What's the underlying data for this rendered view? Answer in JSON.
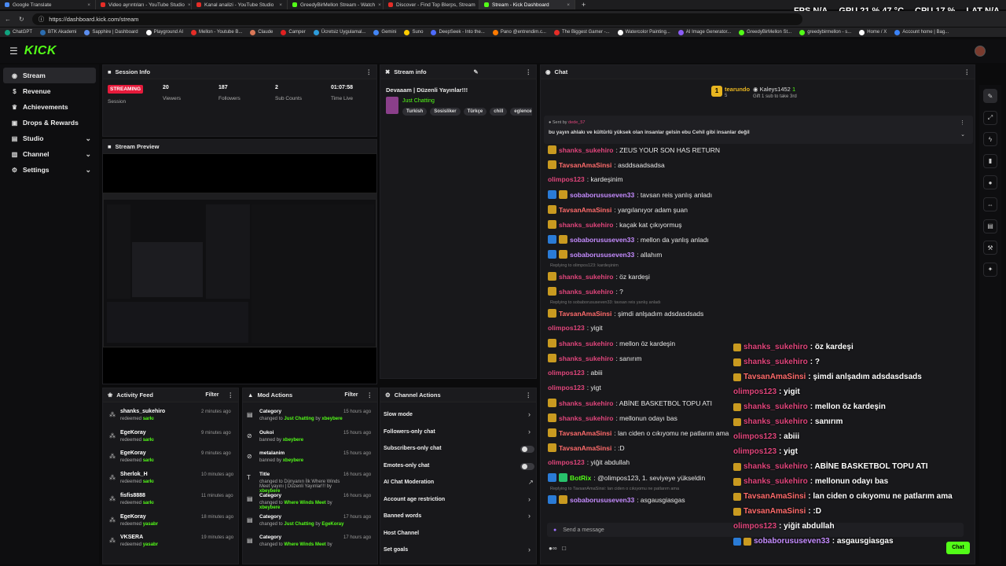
{
  "browser": {
    "tabs": [
      {
        "title": "Google Translate",
        "color": "#4a8af4"
      },
      {
        "title": "Video ayrıntıları - YouTube Studio",
        "color": "#e52d27"
      },
      {
        "title": "Kanal analizi - YouTube Studio",
        "color": "#e52d27"
      },
      {
        "title": "GreedyBirMellon Stream - Watch",
        "color": "#53fc18"
      },
      {
        "title": "Discover - Find Top Blerps, Stream",
        "color": "#e52d27"
      },
      {
        "title": "Stream - Kick Dashboard",
        "color": "#53fc18"
      }
    ],
    "url": "https://dashboard.kick.com/stream",
    "bookmarks": [
      "ChatGPT",
      "BTK Akademi",
      "Sapphire | Dashboard",
      "Playground AI",
      "Mellon - Youtube B...",
      "Claude",
      "Camper",
      "Ücretsiz Uygulamal...",
      "Gemini",
      "Suno",
      "DeepSeek - Into the...",
      "Pano @entrendim.c...",
      "The Biggest Gamer -...",
      "Watercolor Painting...",
      "AI Image Generator...",
      "GreedyBirMellon St...",
      "greedybirmellon - s...",
      "Home / X",
      "Account home | Bag..."
    ]
  },
  "hud": {
    "fps_label": "FPS",
    "fps": "N/A",
    "gpu_label": "GPU",
    "gpu": "21 % 47 °C",
    "cpu_label": "CPU",
    "cpu": "17 %",
    "lat_label": "LAT",
    "lat": "N/A"
  },
  "app": {
    "logo": "KICK"
  },
  "sidebar": {
    "items": [
      {
        "label": "Stream",
        "icon": "broadcast-icon"
      },
      {
        "label": "Revenue",
        "icon": "revenue-icon"
      },
      {
        "label": "Achievements",
        "icon": "trophy-icon"
      },
      {
        "label": "Drops & Rewards",
        "icon": "gift-icon"
      },
      {
        "label": "Studio",
        "icon": "studio-icon"
      },
      {
        "label": "Channel",
        "icon": "channel-icon"
      },
      {
        "label": "Settings",
        "icon": "gear-icon"
      }
    ]
  },
  "session": {
    "title": "Session Info",
    "status": "STREAMING",
    "session_label": "Session",
    "viewers": "20",
    "viewers_label": "Viewers",
    "followers": "187",
    "followers_label": "Followers",
    "subs": "2",
    "subs_label": "Sub Counts",
    "time": "01:07:58",
    "time_label": "Time Live"
  },
  "stream_info": {
    "title": "Stream info",
    "stream_title": "Devaaam | Düzenli Yayınlar!!!",
    "category": "Just Chatting",
    "tags": [
      "Turkish",
      "Sosisliker",
      "Türkçe",
      "chill",
      "eglence"
    ]
  },
  "preview": {
    "title": "Stream Preview"
  },
  "activity": {
    "title": "Activity Feed",
    "filter": "Filter",
    "items": [
      {
        "name": "shanks_sukehiro",
        "action": "redeemed",
        "reward": "sarkı",
        "time": "2 minutes ago"
      },
      {
        "name": "EgeKoray",
        "action": "redeemed",
        "reward": "sarkı",
        "time": "9 minutes ago"
      },
      {
        "name": "EgeKoray",
        "action": "redeemed",
        "reward": "sarkı",
        "time": "9 minutes ago"
      },
      {
        "name": "Sherlok_H",
        "action": "redeemed",
        "reward": "sarkı",
        "time": "10 minutes ago"
      },
      {
        "name": "fisfis8888",
        "action": "redeemed",
        "reward": "sarkı",
        "time": "11 minutes ago"
      },
      {
        "name": "EgeKoray",
        "action": "redeemed",
        "reward": "yasabr",
        "time": "18 minutes ago"
      },
      {
        "name": "VKSERA",
        "action": "redeemed",
        "reward": "yasabr",
        "time": "19 minutes ago"
      }
    ]
  },
  "mod_actions": {
    "title": "Mod Actions",
    "filter": "Filter",
    "items": [
      {
        "title": "Category",
        "detail_pre": "changed to",
        "detail_hl": "Just Chatting",
        "detail_post": "by",
        "by": "xbeybere",
        "time": "15 hours ago"
      },
      {
        "title": "Oukoi",
        "detail_pre": "banned by",
        "detail_hl": "",
        "detail_post": "",
        "by": "xbeybere",
        "time": "15 hours ago"
      },
      {
        "title": "metalanim",
        "detail_pre": "banned by",
        "detail_hl": "",
        "detail_post": "",
        "by": "xbeybere",
        "time": "15 hours ago"
      },
      {
        "title": "Title",
        "detail_pre": "changed to Dünyanın İlk Where Winds Meet yayını | Düzenli Yayınlar!!! by",
        "detail_hl": "",
        "detail_post": "",
        "by": "xbeybere",
        "time": "16 hours ago"
      },
      {
        "title": "Category",
        "detail_pre": "changed to",
        "detail_hl": "Where Winds Meet",
        "detail_post": "by",
        "by": "xbeybere",
        "time": "16 hours ago"
      },
      {
        "title": "Category",
        "detail_pre": "changed to",
        "detail_hl": "Just Chatting",
        "detail_post": "by",
        "by": "EgeKoray",
        "time": "17 hours ago"
      },
      {
        "title": "Category",
        "detail_pre": "changed to",
        "detail_hl": "Where Winds Meet",
        "detail_post": "by",
        "by": "",
        "time": "17 hours ago"
      }
    ]
  },
  "channel_actions": {
    "title": "Channel Actions",
    "items": [
      {
        "label": "Slow mode",
        "type": "chevron"
      },
      {
        "label": "Followers-only chat",
        "type": "chevron"
      },
      {
        "label": "Subscribers-only chat",
        "type": "toggle"
      },
      {
        "label": "Emotes-only chat",
        "type": "toggle"
      },
      {
        "label": "AI Chat Moderation",
        "type": "external"
      },
      {
        "label": "Account age restriction",
        "type": "chevron"
      },
      {
        "label": "Banned words",
        "type": "chevron"
      },
      {
        "label": "Host Channel",
        "type": "none"
      },
      {
        "label": "Set goals",
        "type": "chevron"
      }
    ]
  },
  "chat": {
    "title": "Chat",
    "top_gifter_1": "tearundo",
    "top_gifter_1_count": "5",
    "top_gifter_2": "Kaleys1452",
    "top_gifter_2_count": "1",
    "gift_note": "Gift 1 sub to take 3rd",
    "pinned_by_label": "Sent by",
    "pinned_by": "dede_57",
    "pinned_text": "bu yayın ahlakı ve kültürlü yüksek olan insanlar gelsin ebu Cehil gibi insanlar değil",
    "input_placeholder": "Send a message",
    "send_label": "Chat",
    "messages": [
      {
        "user": "shanks_sukehiro",
        "color": "#e0457b",
        "badges": [
          "crown"
        ],
        "text": ": ZEUS YOUR SON HAS RETURN",
        "reply": ""
      },
      {
        "user": "TavsanAmaSinsi",
        "color": "#ff6b6b",
        "badges": [
          "crown"
        ],
        "text": ": asddsaadsadsa",
        "reply": ""
      },
      {
        "user": "olimpos123",
        "color": "#e0457b",
        "badges": [],
        "text": ": kardeşinim",
        "reply": ""
      },
      {
        "user": "sobaborususeven33",
        "color": "#c58cff",
        "badges": [
          "blue",
          "crown"
        ],
        "text": ": tavsan reis yanlış anladı",
        "reply": ""
      },
      {
        "user": "TavsanAmaSinsi",
        "color": "#ff6b6b",
        "badges": [
          "crown"
        ],
        "text": ": yargılanıyor adam şuan",
        "reply": ""
      },
      {
        "user": "shanks_sukehiro",
        "color": "#e0457b",
        "badges": [
          "crown"
        ],
        "text": ": kaçak kat çıkıyormuş",
        "reply": ""
      },
      {
        "user": "sobaborususeven33",
        "color": "#c58cff",
        "badges": [
          "blue",
          "crown"
        ],
        "text": ": mellon da yanlış anladı",
        "reply": ""
      },
      {
        "user": "sobaborususeven33",
        "color": "#c58cff",
        "badges": [
          "blue",
          "crown"
        ],
        "text": ": allahım",
        "reply": ""
      },
      {
        "user": "shanks_sukehiro",
        "color": "#e0457b",
        "badges": [
          "crown"
        ],
        "text": ": öz kardeşi",
        "reply": "Replying to olimpos123: kardeşinim"
      },
      {
        "user": "shanks_sukehiro",
        "color": "#e0457b",
        "badges": [
          "crown"
        ],
        "text": ": ?",
        "reply": ""
      },
      {
        "user": "TavsanAmaSinsi",
        "color": "#ff6b6b",
        "badges": [
          "crown"
        ],
        "text": ": şimdi anlşadım adsdasdsads",
        "reply": "Replying to sobaborususeven33: tavsan reis yanlış anladı"
      },
      {
        "user": "olimpos123",
        "color": "#e0457b",
        "badges": [],
        "text": ": yigit",
        "reply": ""
      },
      {
        "user": "shanks_sukehiro",
        "color": "#e0457b",
        "badges": [
          "crown"
        ],
        "text": ": mellon öz kardeşin",
        "reply": ""
      },
      {
        "user": "shanks_sukehiro",
        "color": "#e0457b",
        "badges": [
          "crown"
        ],
        "text": ": sanırım",
        "reply": ""
      },
      {
        "user": "olimpos123",
        "color": "#e0457b",
        "badges": [],
        "text": ": abiii",
        "reply": ""
      },
      {
        "user": "olimpos123",
        "color": "#e0457b",
        "badges": [],
        "text": ": yigt",
        "reply": ""
      },
      {
        "user": "shanks_sukehiro",
        "color": "#e0457b",
        "badges": [
          "crown"
        ],
        "text": ": ABİNE BASKETBOL TOPU ATI",
        "reply": ""
      },
      {
        "user": "shanks_sukehiro",
        "color": "#e0457b",
        "badges": [
          "crown"
        ],
        "text": ": mellonun odayı bas",
        "reply": ""
      },
      {
        "user": "TavsanAmaSinsi",
        "color": "#ff6b6b",
        "badges": [
          "crown"
        ],
        "text": ": lan ciden o cıkıyomu ne patlarım ama",
        "reply": ""
      },
      {
        "user": "TavsanAmaSinsi",
        "color": "#ff6b6b",
        "badges": [
          "crown"
        ],
        "text": ": :D",
        "reply": ""
      },
      {
        "user": "olimpos123",
        "color": "#e0457b",
        "badges": [],
        "text": ": yiğit abdullah",
        "reply": ""
      },
      {
        "user": "BotRix",
        "color": "#53fc18",
        "badges": [
          "blue",
          "green"
        ],
        "text": ": @olimpos123, 1. seviyeye yükseldin",
        "reply": ""
      },
      {
        "user": "sobaborususeven33",
        "color": "#c58cff",
        "badges": [
          "blue",
          "crown"
        ],
        "text": ": asgausgiasgas",
        "reply": "Replying to TavsanAmaSinsi: lan ciden o cıkıyomu ne patlarım ama"
      }
    ]
  },
  "overlay_chat": [
    {
      "user": "shanks_sukehiro",
      "color": "#e0457b",
      "badges": [
        "crown"
      ],
      "text": " : öz kardeşi"
    },
    {
      "user": "shanks_sukehiro",
      "color": "#e0457b",
      "badges": [
        "crown"
      ],
      "text": " : ?"
    },
    {
      "user": "TavsanAmaSinsi",
      "color": "#ff6b6b",
      "badges": [
        "crown"
      ],
      "text": " : şimdi anlşadım adsdasdsads"
    },
    {
      "user": "olimpos123",
      "color": "#e0457b",
      "badges": [],
      "text": " : yigit"
    },
    {
      "user": "shanks_sukehiro",
      "color": "#e0457b",
      "badges": [
        "crown"
      ],
      "text": " : mellon öz kardeşin"
    },
    {
      "user": "shanks_sukehiro",
      "color": "#e0457b",
      "badges": [
        "crown"
      ],
      "text": " : sanırım"
    },
    {
      "user": "olimpos123",
      "color": "#e0457b",
      "badges": [],
      "text": " : abiii"
    },
    {
      "user": "olimpos123",
      "color": "#e0457b",
      "badges": [],
      "text": " : yigt"
    },
    {
      "user": "shanks_sukehiro",
      "color": "#e0457b",
      "badges": [
        "crown"
      ],
      "text": " : ABİNE BASKETBOL TOPU ATI"
    },
    {
      "user": "shanks_sukehiro",
      "color": "#e0457b",
      "badges": [
        "crown"
      ],
      "text": " : mellonun odayı bas"
    },
    {
      "user": "TavsanAmaSinsi",
      "color": "#ff6b6b",
      "badges": [
        "crown"
      ],
      "text": " : lan ciden o cıkıyomu ne patlarım ama"
    },
    {
      "user": "TavsanAmaSinsi",
      "color": "#ff6b6b",
      "badges": [
        "crown"
      ],
      "text": " : :D"
    },
    {
      "user": "olimpos123",
      "color": "#e0457b",
      "badges": [],
      "text": " : yiğit abdullah"
    },
    {
      "user": "sobaborususeven33",
      "color": "#c58cff",
      "badges": [
        "blue",
        "crown"
      ],
      "text": " : asgausgiasgas"
    }
  ],
  "right_tools": [
    "pencil-icon",
    "expand-icon",
    "bolt-icon",
    "trash-icon",
    "chat-bubble-icon",
    "link-icon",
    "list-icon",
    "wrench-icon",
    "puzzle-icon"
  ]
}
